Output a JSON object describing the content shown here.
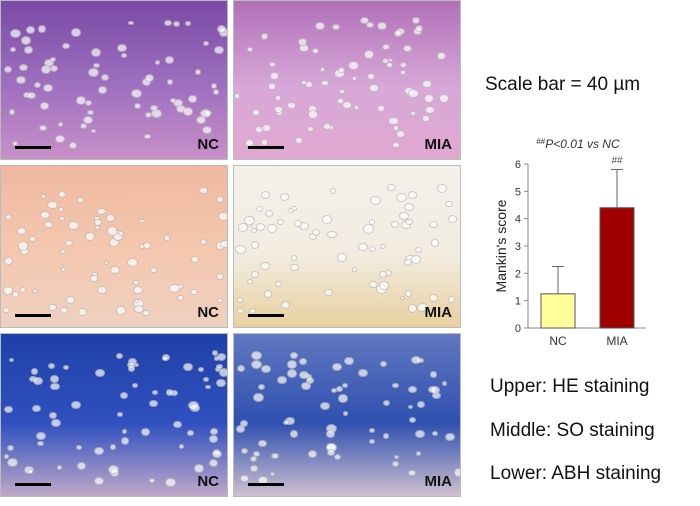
{
  "panels": [
    {
      "label": "NC",
      "stain": "HE",
      "colors": [
        "#7a4aa6",
        "#a070c0",
        "#c890c8"
      ]
    },
    {
      "label": "MIA",
      "stain": "HE",
      "colors": [
        "#b070b8",
        "#d8a8d8",
        "#e0a8d0"
      ]
    },
    {
      "label": "NC",
      "stain": "SO",
      "colors": [
        "#f0b8a0",
        "#f4c8b0",
        "#f0d0c0"
      ]
    },
    {
      "label": "MIA",
      "stain": "SO",
      "colors": [
        "#f4f0ea",
        "#f2ece0",
        "#e8d0a0"
      ]
    },
    {
      "label": "NC",
      "stain": "ABH",
      "colors": [
        "#2040a8",
        "#3050c0",
        "#c0a8c8"
      ]
    },
    {
      "label": "MIA",
      "stain": "ABH",
      "colors": [
        "#6078c0",
        "#3050b0",
        "#d0c0d0"
      ]
    }
  ],
  "scale_bar_text": "Scale bar = 40 µm",
  "legend_lines": [
    "Upper: HE staining",
    "Middle: SO staining",
    "Lower: ABH staining"
  ],
  "chart_data": {
    "type": "bar",
    "title": "##P<0.01 vs NC",
    "title_prefix": "##",
    "title_main": "P<0.01 vs NC",
    "categories": [
      "NC",
      "MIA"
    ],
    "values": [
      1.25,
      4.4
    ],
    "error": [
      1.0,
      1.4
    ],
    "annotations": [
      "",
      "##"
    ],
    "colors": [
      "#ffff99",
      "#a00000"
    ],
    "ylabel": "Mankin's score",
    "ylim": [
      0,
      6
    ],
    "yticks": [
      0,
      1,
      2,
      3,
      4,
      5,
      6
    ]
  }
}
